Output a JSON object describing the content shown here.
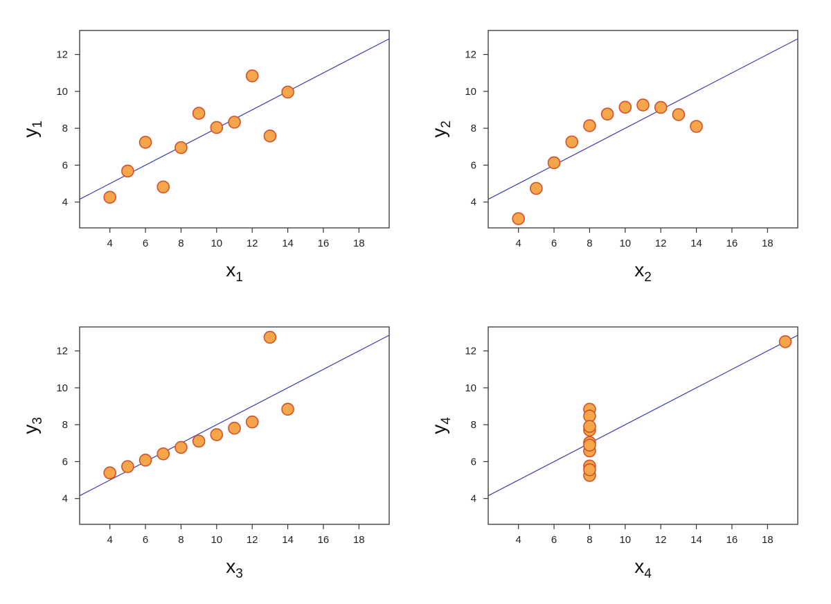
{
  "colors": {
    "point_fill": "#f5a54a",
    "point_stroke": "#d2502a",
    "fit_line": "#3a3ab8",
    "frame": "#333333"
  },
  "chart_data": [
    {
      "type": "scatter",
      "title": "",
      "xlabel": "x",
      "xlabel_sub": "1",
      "ylabel": "y",
      "ylabel_sub": "1",
      "xlim": [
        2.3,
        19.7
      ],
      "ylim": [
        2.6,
        13.3
      ],
      "xticks": [
        4,
        6,
        8,
        10,
        12,
        14,
        16,
        18
      ],
      "yticks": [
        4,
        6,
        8,
        10,
        12
      ],
      "x": [
        10,
        8,
        13,
        9,
        11,
        14,
        6,
        4,
        12,
        7,
        5
      ],
      "y": [
        8.04,
        6.95,
        7.58,
        8.81,
        8.33,
        9.96,
        7.24,
        4.26,
        10.84,
        4.82,
        5.68
      ],
      "fit": {
        "intercept": 3.0,
        "slope": 0.5
      }
    },
    {
      "type": "scatter",
      "title": "",
      "xlabel": "x",
      "xlabel_sub": "2",
      "ylabel": "y",
      "ylabel_sub": "2",
      "xlim": [
        2.3,
        19.7
      ],
      "ylim": [
        2.6,
        13.3
      ],
      "xticks": [
        4,
        6,
        8,
        10,
        12,
        14,
        16,
        18
      ],
      "yticks": [
        4,
        6,
        8,
        10,
        12
      ],
      "x": [
        10,
        8,
        13,
        9,
        11,
        14,
        6,
        4,
        12,
        7,
        5
      ],
      "y": [
        9.14,
        8.14,
        8.74,
        8.77,
        9.26,
        8.1,
        6.13,
        3.1,
        9.13,
        7.26,
        4.74
      ],
      "fit": {
        "intercept": 3.0,
        "slope": 0.5
      }
    },
    {
      "type": "scatter",
      "title": "",
      "xlabel": "x",
      "xlabel_sub": "3",
      "ylabel": "y",
      "ylabel_sub": "3",
      "xlim": [
        2.3,
        19.7
      ],
      "ylim": [
        2.6,
        13.3
      ],
      "xticks": [
        4,
        6,
        8,
        10,
        12,
        14,
        16,
        18
      ],
      "yticks": [
        4,
        6,
        8,
        10,
        12
      ],
      "x": [
        10,
        8,
        13,
        9,
        11,
        14,
        6,
        4,
        12,
        7,
        5
      ],
      "y": [
        7.46,
        6.77,
        12.74,
        7.11,
        7.81,
        8.84,
        6.08,
        5.39,
        8.15,
        6.42,
        5.73
      ],
      "fit": {
        "intercept": 3.0,
        "slope": 0.5
      }
    },
    {
      "type": "scatter",
      "title": "",
      "xlabel": "x",
      "xlabel_sub": "4",
      "ylabel": "y",
      "ylabel_sub": "4",
      "xlim": [
        2.3,
        19.7
      ],
      "ylim": [
        2.6,
        13.3
      ],
      "xticks": [
        4,
        6,
        8,
        10,
        12,
        14,
        16,
        18
      ],
      "yticks": [
        4,
        6,
        8,
        10,
        12
      ],
      "x": [
        8,
        8,
        8,
        8,
        8,
        8,
        8,
        19,
        8,
        8,
        8
      ],
      "y": [
        6.58,
        5.76,
        7.71,
        8.84,
        8.47,
        7.04,
        5.25,
        12.5,
        5.56,
        7.91,
        6.89
      ],
      "fit": {
        "intercept": 3.0,
        "slope": 0.5
      }
    }
  ]
}
